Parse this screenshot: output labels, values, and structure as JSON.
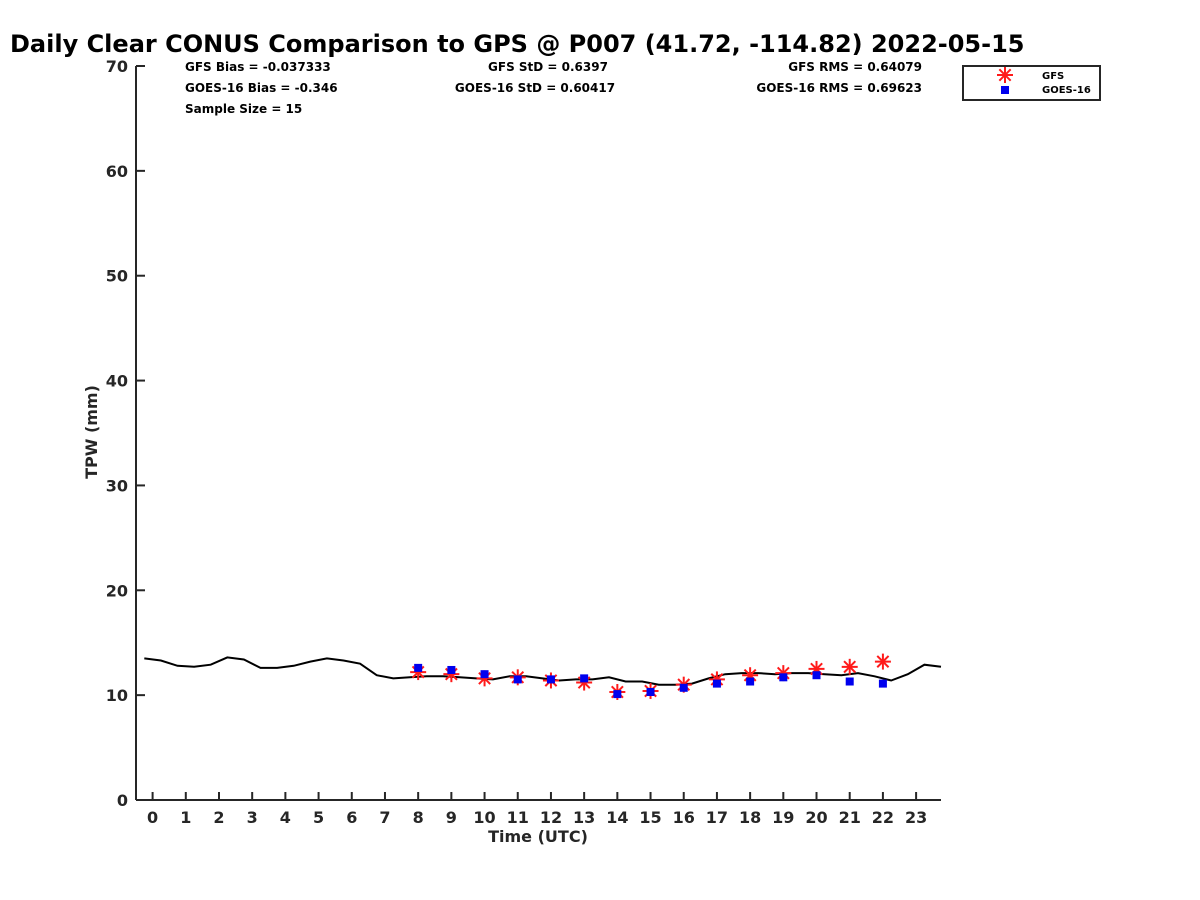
{
  "chart_data": {
    "type": "scatter",
    "title": "Daily Clear CONUS Comparison to GPS @ P007 (41.72, -114.82) 2022-05-15",
    "xlabel": "Time (UTC)",
    "ylabel": "TPW (mm)",
    "xlim": [
      -0.5,
      23.75
    ],
    "ylim": [
      0,
      70
    ],
    "x_ticks": [
      0,
      1,
      2,
      3,
      4,
      5,
      6,
      7,
      8,
      9,
      10,
      11,
      12,
      13,
      14,
      15,
      16,
      17,
      18,
      19,
      20,
      21,
      22,
      23
    ],
    "y_ticks": [
      0,
      10,
      20,
      30,
      40,
      50,
      60,
      70
    ],
    "stats": {
      "gfs_bias": "GFS Bias = -0.037333",
      "goes_bias": "GOES-16 Bias = -0.346",
      "sample_size": "Sample Size = 15",
      "gfs_std": "GFS StD = 0.6397",
      "goes_std": "GOES-16 StD = 0.60417",
      "gfs_rms": "GFS RMS = 0.64079",
      "goes_rms": "GOES-16 RMS = 0.69623"
    },
    "legend_position": "top-right",
    "gps_line": {
      "color": "#000000",
      "x": [
        -0.25,
        0.25,
        0.75,
        1.25,
        1.75,
        2.25,
        2.75,
        3.25,
        3.75,
        4.25,
        4.75,
        5.25,
        5.75,
        6.25,
        6.75,
        7.25,
        7.75,
        8.25,
        8.75,
        9.25,
        9.75,
        10.25,
        10.75,
        11.25,
        11.75,
        12.25,
        12.75,
        13.25,
        13.75,
        14.25,
        14.75,
        15.25,
        15.75,
        16.25,
        16.75,
        17.25,
        17.75,
        18.25,
        18.75,
        19.25,
        19.75,
        20.25,
        20.75,
        21.25,
        21.75,
        22.25,
        22.75,
        23.25,
        23.75
      ],
      "y": [
        13.5,
        13.3,
        12.8,
        12.7,
        12.9,
        13.6,
        13.4,
        12.6,
        12.6,
        12.8,
        13.2,
        13.5,
        13.3,
        13.0,
        11.9,
        11.6,
        11.7,
        11.8,
        11.8,
        11.7,
        11.6,
        11.5,
        11.8,
        11.8,
        11.6,
        11.4,
        11.5,
        11.5,
        11.7,
        11.3,
        11.3,
        11.0,
        11.0,
        11.1,
        11.6,
        12.0,
        12.1,
        12.1,
        12.0,
        12.1,
        12.1,
        12.0,
        11.9,
        12.1,
        11.8,
        11.4,
        12.0,
        12.9,
        12.7
      ]
    },
    "series": [
      {
        "name": "GFS",
        "marker": "asterisk",
        "color": "#ff1a1a",
        "x": [
          8,
          9,
          10,
          11,
          12,
          13,
          14,
          15,
          16,
          17,
          18,
          19,
          20,
          21,
          22
        ],
        "y": [
          12.2,
          12.0,
          11.6,
          11.7,
          11.4,
          11.2,
          10.3,
          10.4,
          11.0,
          11.5,
          11.9,
          12.1,
          12.5,
          12.7,
          13.2
        ]
      },
      {
        "name": "GOES-16",
        "marker": "square",
        "color": "#0000ee",
        "x": [
          8,
          9,
          10,
          11,
          12,
          13,
          14,
          15,
          16,
          17,
          18,
          19,
          20,
          21,
          22
        ],
        "y": [
          12.6,
          12.4,
          12.0,
          11.5,
          11.5,
          11.6,
          10.1,
          10.3,
          10.7,
          11.1,
          11.3,
          11.7,
          11.9,
          11.3,
          11.1
        ]
      }
    ]
  }
}
